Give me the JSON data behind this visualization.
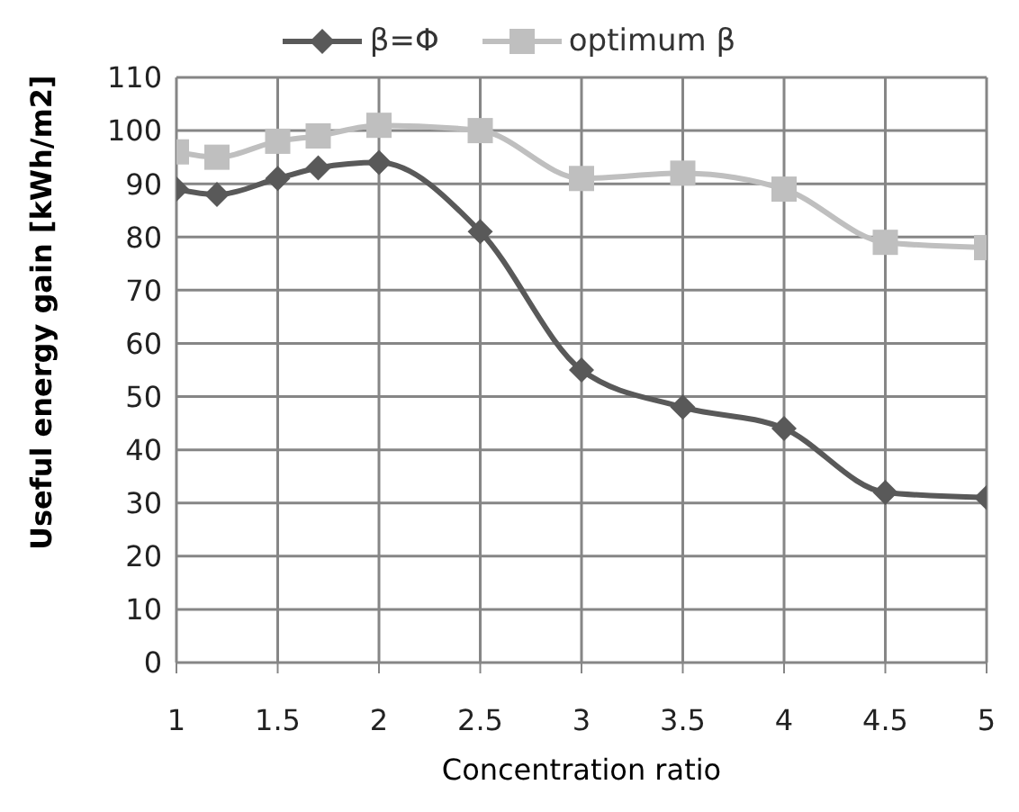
{
  "chart_data": {
    "type": "line",
    "xlabel": "Concentration ratio",
    "ylabel": "Useful energy gain [kWh/m2]",
    "x": [
      1,
      1.2,
      1.5,
      1.7,
      2,
      2.5,
      3,
      3.5,
      4,
      4.5,
      5
    ],
    "series": [
      {
        "name": "β=Φ",
        "color": "#595959",
        "marker": "diamond",
        "values": [
          89,
          88,
          91,
          93,
          94,
          81,
          55,
          48,
          44,
          32,
          31
        ]
      },
      {
        "name": "optimum β",
        "color": "#bfbfbf",
        "marker": "square",
        "values": [
          96,
          95,
          98,
          99,
          101,
          100,
          91,
          92,
          89,
          79,
          78
        ]
      }
    ],
    "xlim": [
      1,
      5
    ],
    "xticks": [
      1,
      1.5,
      2,
      2.5,
      3,
      3.5,
      4,
      4.5,
      5
    ],
    "ylim": [
      0,
      110
    ],
    "yticks": [
      0,
      10,
      20,
      30,
      40,
      50,
      60,
      70,
      80,
      90,
      100,
      110
    ],
    "grid": true,
    "legend": "top"
  }
}
